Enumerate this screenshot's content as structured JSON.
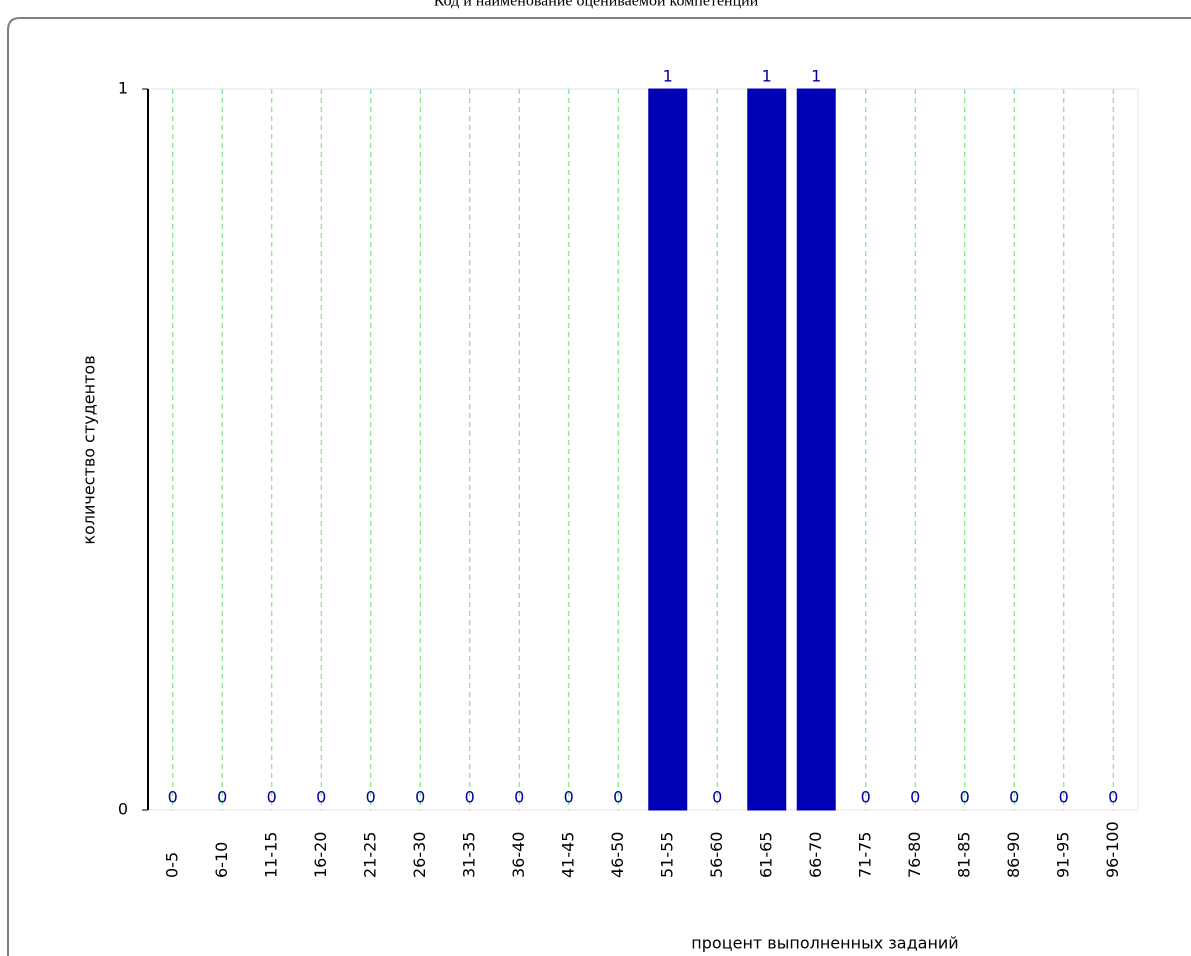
{
  "chart_data": {
    "type": "bar",
    "title": "Код и наименование оцениваемой компетенции",
    "x_label": "процент выполненных заданий",
    "y_label": "количество студентов",
    "categories": [
      "0-5",
      "6-10",
      "11-15",
      "16-20",
      "21-25",
      "26-30",
      "31-35",
      "36-40",
      "41-45",
      "46-50",
      "51-55",
      "56-60",
      "61-65",
      "66-70",
      "71-75",
      "76-80",
      "81-85",
      "86-90",
      "91-95",
      "96-100"
    ],
    "values": [
      0,
      0,
      0,
      0,
      0,
      0,
      0,
      0,
      0,
      0,
      1,
      0,
      1,
      1,
      0,
      0,
      0,
      0,
      0,
      0
    ],
    "color": "#0000b4",
    "ylim": [
      0,
      1
    ],
    "yticks": [
      0,
      1
    ],
    "grid": true
  }
}
